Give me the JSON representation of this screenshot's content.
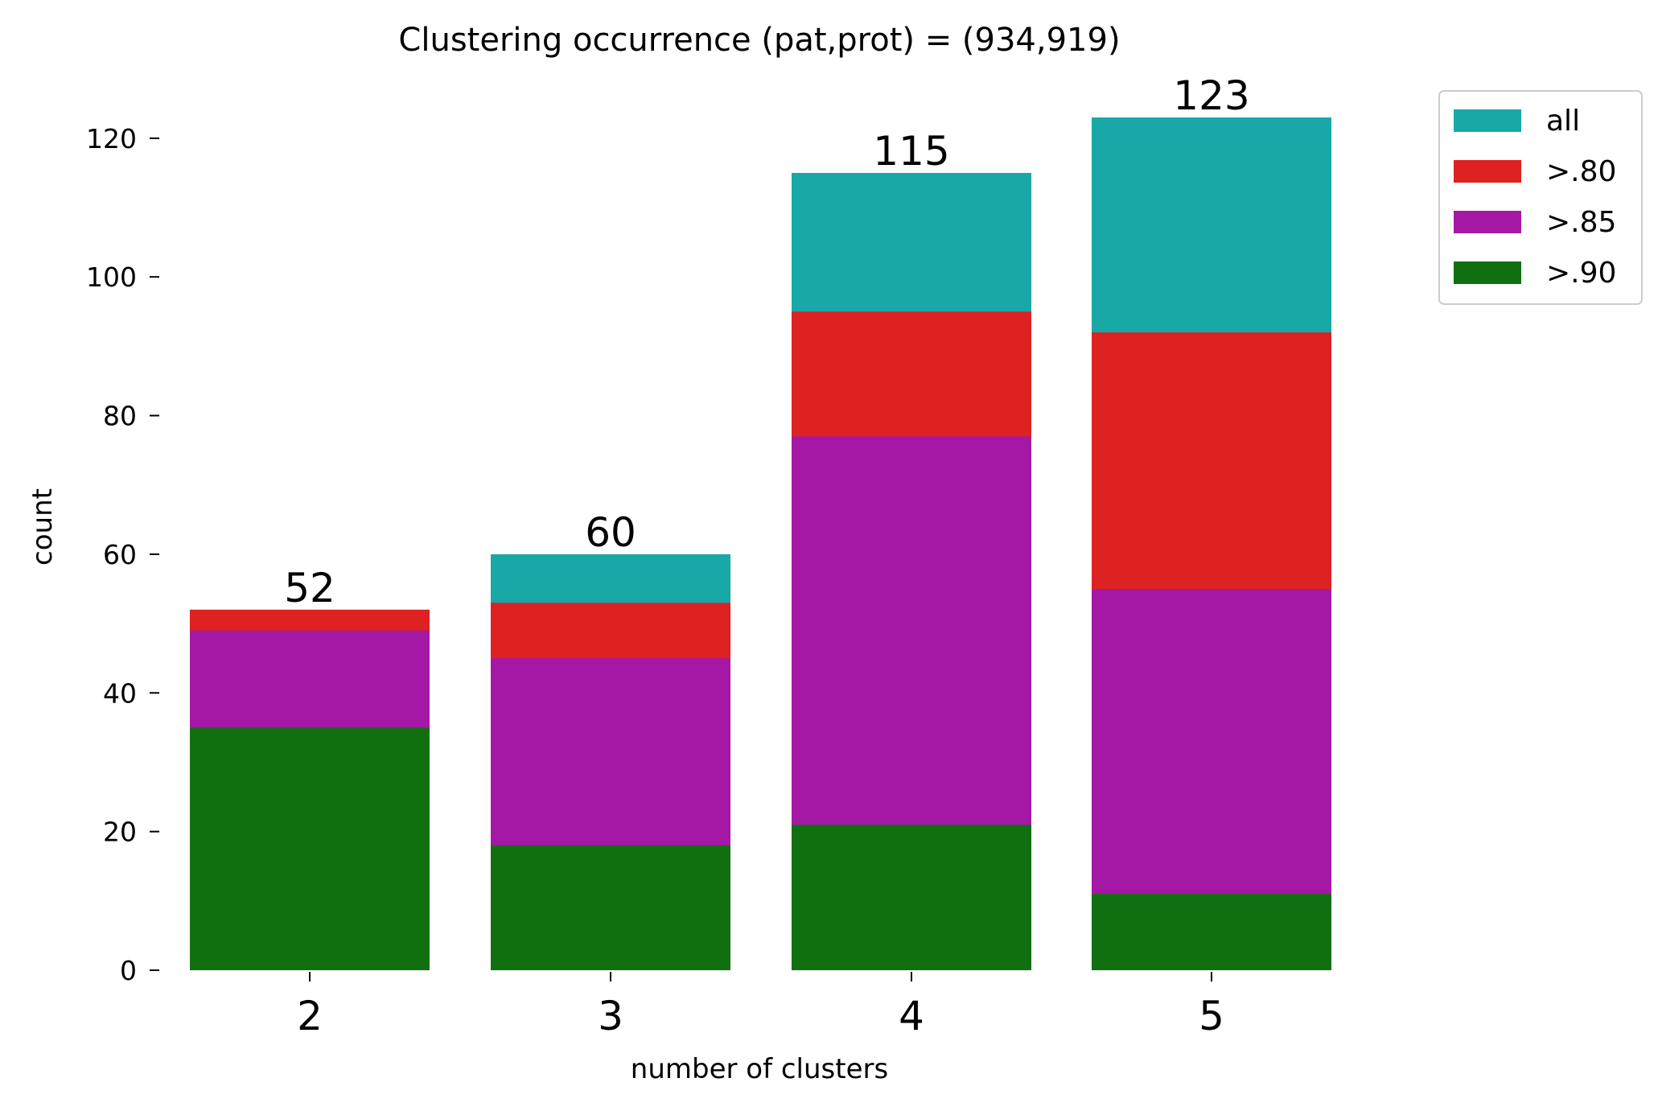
{
  "chart_data": {
    "type": "bar",
    "stacked": false,
    "overlapping": true,
    "title": "Clustering occurrence (pat,prot) = (934,919)",
    "xlabel": "number of clusters",
    "ylabel": "count",
    "categories": [
      "2",
      "3",
      "4",
      "5"
    ],
    "ylim": [
      0,
      128
    ],
    "yticks": [
      0,
      20,
      40,
      60,
      80,
      100,
      120
    ],
    "ytick_labels": [
      "0",
      "20",
      "40",
      "60",
      "80",
      "100",
      "120"
    ],
    "grid": false,
    "legend_position": "upper-right-outside",
    "series": [
      {
        "name": "all",
        "color": "#18a8a8",
        "values": [
          52,
          60,
          115,
          123
        ]
      },
      {
        "name": ">.80",
        "color": "#de2121",
        "values": [
          52,
          53,
          95,
          92
        ]
      },
      {
        "name": ">.85",
        "color": "#a518a5",
        "values": [
          49,
          45,
          77,
          55
        ]
      },
      {
        "name": ">.90",
        "color": "#107010",
        "values": [
          35,
          18,
          21,
          11
        ]
      }
    ],
    "bar_labels": [
      "52",
      "60",
      "115",
      "123"
    ]
  }
}
